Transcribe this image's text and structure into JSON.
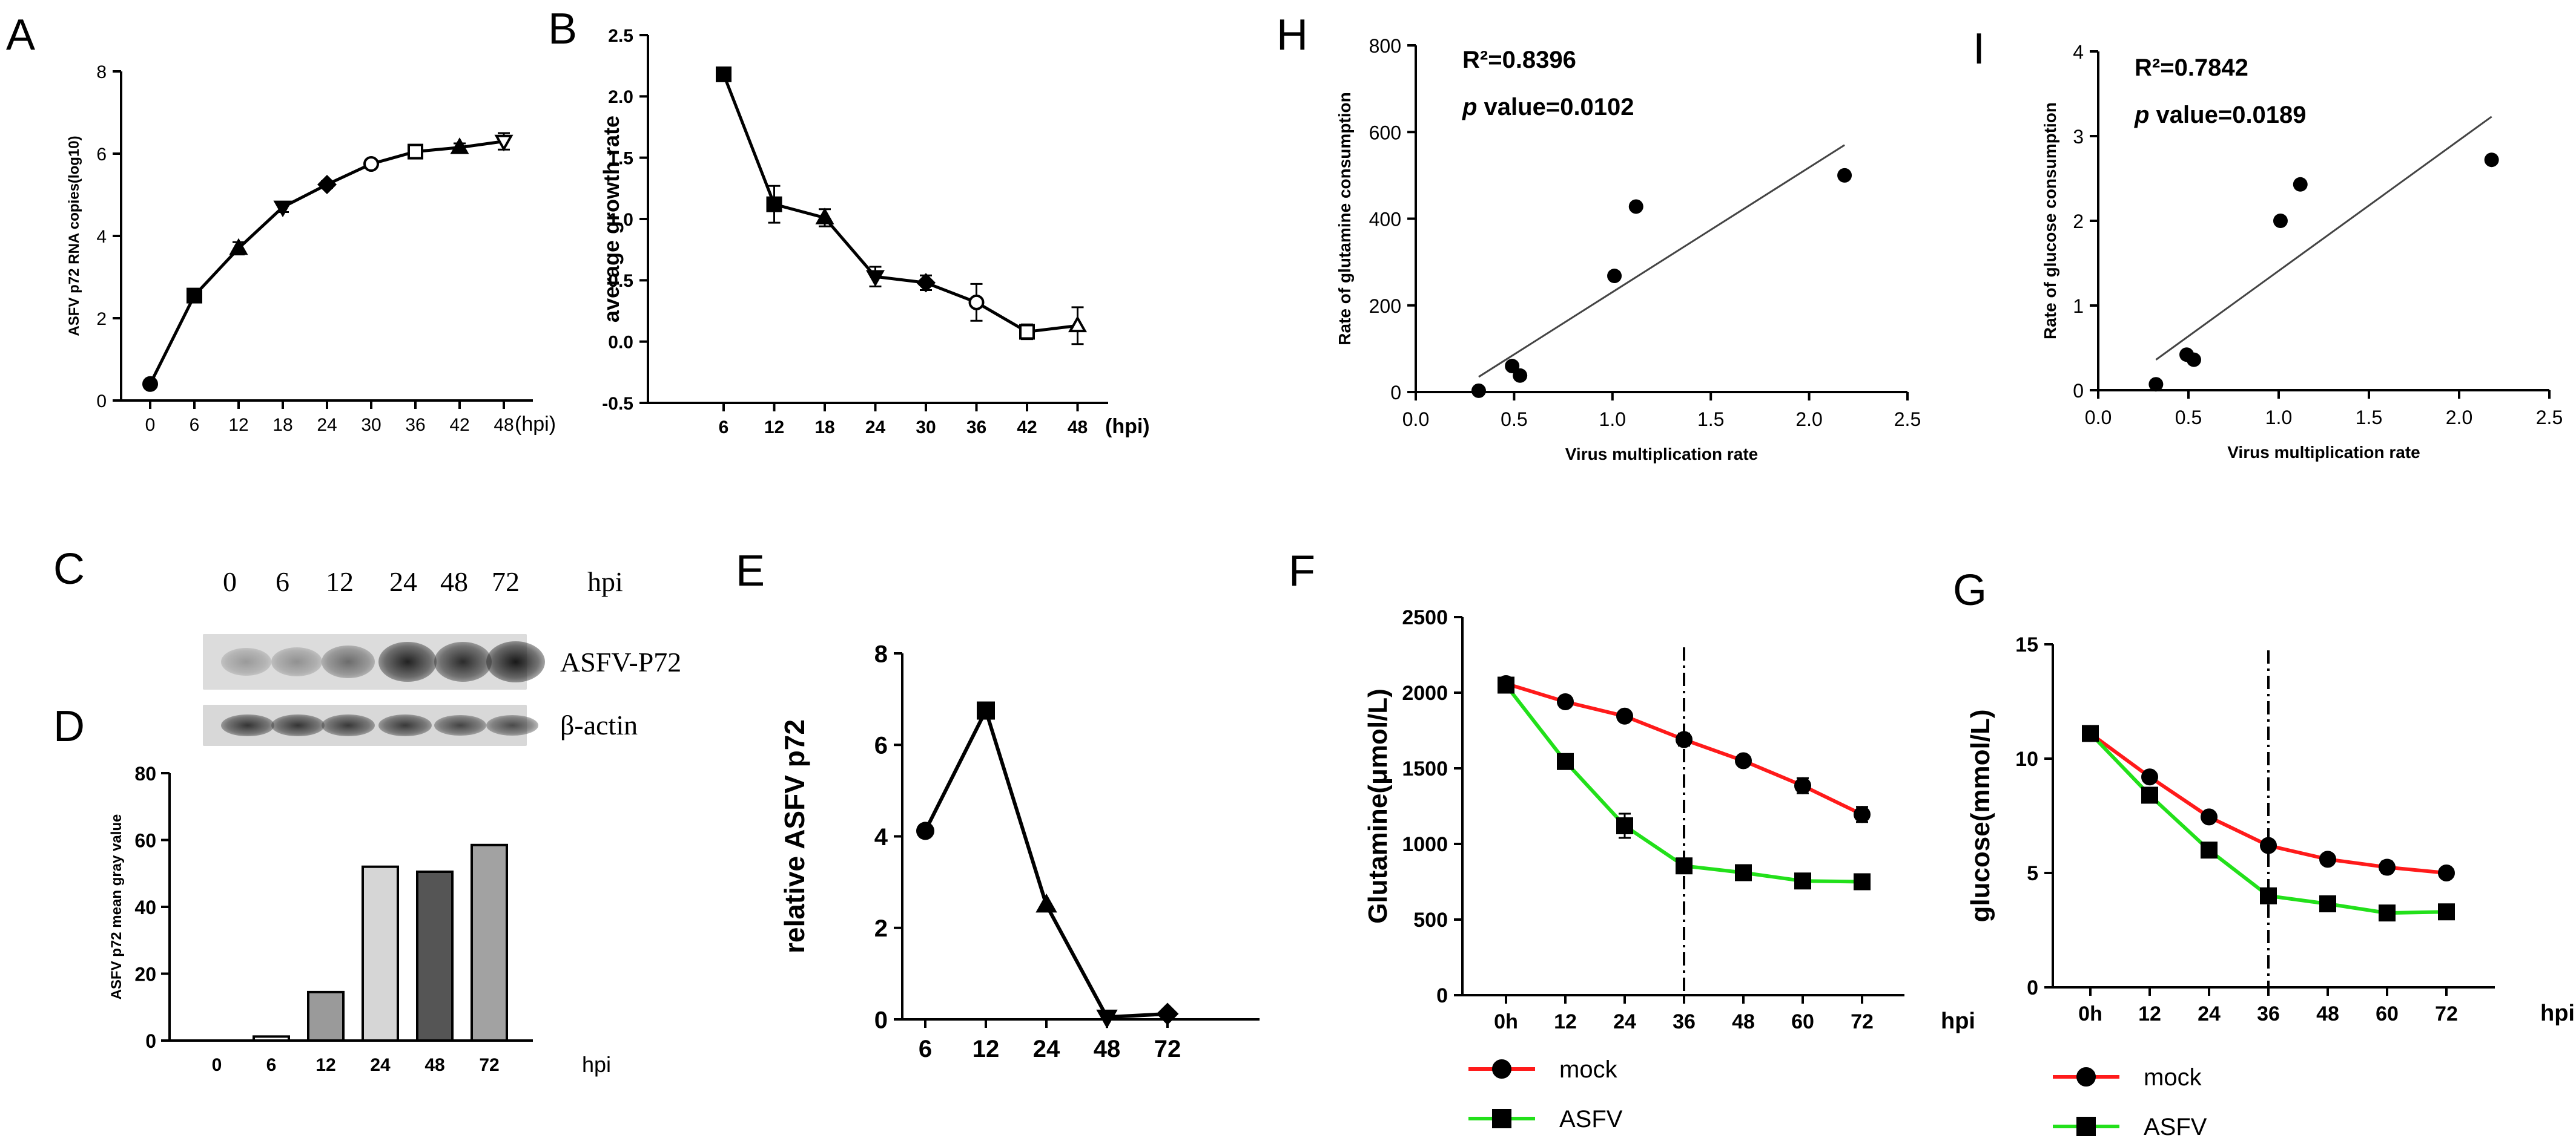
{
  "panel_letters": {
    "A": "A",
    "B": "B",
    "C": "C",
    "D": "D",
    "E": "E",
    "F": "F",
    "G": "G",
    "H": "H",
    "I": "I"
  },
  "blot": {
    "lanes": [
      "0",
      "6",
      "12",
      "24",
      "48",
      "72"
    ],
    "unit": "hpi",
    "row1_label": "ASFV-P72",
    "row2_label": "β-actin",
    "row1_intensity": [
      0.25,
      0.3,
      0.5,
      0.9,
      0.85,
      0.95
    ],
    "row2_intensity": [
      0.8,
      0.8,
      0.78,
      0.78,
      0.72,
      0.68
    ]
  },
  "chart_data": [
    {
      "id": "A",
      "type": "line",
      "title": "",
      "xlabel": "",
      "x_unit": "(hpi)",
      "ylabel": "ASFV p72 RNA copies(log10)",
      "categories": [
        "0",
        "6",
        "12",
        "18",
        "24",
        "30",
        "36",
        "42",
        "48"
      ],
      "values": [
        0.4,
        2.55,
        3.7,
        4.7,
        5.25,
        5.75,
        6.05,
        6.15,
        6.3
      ],
      "errors": [
        0.05,
        0.12,
        0.15,
        0.12,
        0.08,
        0.1,
        0.15,
        0.1,
        0.2
      ],
      "markers": [
        "circle",
        "square",
        "triangle",
        "triangle-down",
        "diamond",
        "circle-open",
        "square-open",
        "triangle",
        "triangle-down-open"
      ],
      "ylim": [
        0,
        8
      ],
      "yticks": [
        "0",
        "2",
        "4",
        "6",
        "8"
      ]
    },
    {
      "id": "B",
      "type": "line",
      "title": "",
      "xlabel": "",
      "x_unit": "(hpi)",
      "ylabel": "average growth rate",
      "categories": [
        "6",
        "12",
        "18",
        "24",
        "30",
        "36",
        "42",
        "48"
      ],
      "values": [
        2.18,
        1.12,
        1.01,
        0.53,
        0.48,
        0.32,
        0.08,
        0.13
      ],
      "errors": [
        0.05,
        0.15,
        0.07,
        0.08,
        0.06,
        0.15,
        0.06,
        0.15
      ],
      "markers": [
        "square",
        "square",
        "triangle",
        "triangle-down",
        "diamond",
        "circle-open",
        "square-open",
        "triangle-open"
      ],
      "ylim": [
        -0.5,
        2.5
      ],
      "yticks": [
        "-0.5",
        "0.0",
        "0.5",
        "1.0",
        "1.5",
        "2.0",
        "2.5"
      ]
    },
    {
      "id": "H",
      "type": "scatter",
      "annotation_r2": "R²=0.8396",
      "annotation_p_label": "p",
      "annotation_p": " value=0.0102",
      "xlabel": "Virus multiplication rate",
      "ylabel": "Rate of glutamine consumption",
      "points": [
        [
          0.32,
          3
        ],
        [
          0.49,
          60
        ],
        [
          0.53,
          38
        ],
        [
          1.01,
          268
        ],
        [
          1.12,
          428
        ],
        [
          2.18,
          500
        ]
      ],
      "fit_line": [
        [
          0.32,
          35
        ],
        [
          2.18,
          570
        ]
      ],
      "xlim": [
        0,
        2.5
      ],
      "ylim": [
        0,
        800
      ],
      "xticks": [
        "0.0",
        "0.5",
        "1.0",
        "1.5",
        "2.0",
        "2.5"
      ],
      "yticks": [
        "0",
        "200",
        "400",
        "600",
        "800"
      ]
    },
    {
      "id": "I",
      "type": "scatter",
      "annotation_r2": "R²=0.7842",
      "annotation_p_label": "p",
      "annotation_p": " value=0.0189",
      "xlabel": "Virus multiplication rate",
      "ylabel": "Rate of glucose consumption",
      "points": [
        [
          0.32,
          0.07
        ],
        [
          0.49,
          0.42
        ],
        [
          0.53,
          0.36
        ],
        [
          1.01,
          2.0
        ],
        [
          1.12,
          2.43
        ],
        [
          2.18,
          2.72
        ]
      ],
      "fit_line": [
        [
          0.32,
          0.36
        ],
        [
          2.18,
          3.23
        ]
      ],
      "xlim": [
        0,
        2.5
      ],
      "ylim": [
        0,
        4
      ],
      "xticks": [
        "0.0",
        "0.5",
        "1.0",
        "1.5",
        "2.0",
        "2.5"
      ],
      "yticks": [
        "0",
        "1",
        "2",
        "3",
        "4"
      ]
    },
    {
      "id": "D",
      "type": "bar",
      "xlabel": "",
      "x_unit": "hpi",
      "ylabel": "ASFV p72 mean gray value",
      "categories": [
        "0",
        "6",
        "12",
        "24",
        "48",
        "72"
      ],
      "values": [
        0,
        1.2,
        14.5,
        52,
        50.5,
        58.5
      ],
      "colors": [
        "#ffffff",
        "#ffffff",
        "#9a9a9a",
        "#d6d6d6",
        "#555555",
        "#a2a2a2"
      ],
      "ylim": [
        0,
        80
      ],
      "yticks": [
        "0",
        "20",
        "40",
        "60",
        "80"
      ]
    },
    {
      "id": "E",
      "type": "line",
      "xlabel": "",
      "ylabel": "relative ASFV p72",
      "categories": [
        "6",
        "12",
        "24",
        "48",
        "72"
      ],
      "values": [
        4.12,
        6.75,
        2.5,
        0.05,
        0.12
      ],
      "markers": [
        "circle",
        "square",
        "triangle",
        "triangle-down",
        "diamond"
      ],
      "ylim": [
        0,
        8
      ],
      "yticks": [
        "0",
        "2",
        "4",
        "6",
        "8"
      ]
    },
    {
      "id": "F",
      "type": "line",
      "xlabel": "",
      "x_unit": "hpi",
      "ylabel": "Glutamine(μmol/L)",
      "categories": [
        "0h",
        "12",
        "24",
        "36",
        "48",
        "60",
        "72"
      ],
      "series": [
        {
          "name": "mock",
          "color": "#ff1a1a",
          "marker": "circle",
          "values": [
            2060,
            1940,
            1845,
            1690,
            1550,
            1385,
            1195
          ],
          "errors": [
            30,
            35,
            30,
            40,
            30,
            50,
            50
          ]
        },
        {
          "name": "ASFV",
          "color": "#22e01a",
          "marker": "square",
          "values": [
            2050,
            1545,
            1120,
            855,
            810,
            755,
            750
          ],
          "errors": [
            30,
            30,
            80,
            40,
            40,
            35,
            35
          ]
        }
      ],
      "vline_at": "36",
      "ylim": [
        0,
        2500
      ],
      "yticks": [
        "0",
        "500",
        "1000",
        "1500",
        "2000",
        "2500"
      ]
    },
    {
      "id": "G",
      "type": "line",
      "xlabel": "",
      "x_unit": "hpi",
      "ylabel": "glucose(mmol/L)",
      "categories": [
        "0h",
        "12",
        "24",
        "36",
        "48",
        "60",
        "72"
      ],
      "series": [
        {
          "name": "mock",
          "color": "#ff1a1a",
          "marker": "circle",
          "values": [
            11.1,
            9.2,
            7.45,
            6.2,
            5.6,
            5.25,
            5.0
          ],
          "errors": [
            0.2,
            0.2,
            0.2,
            0.2,
            0.2,
            0.25,
            0.2
          ]
        },
        {
          "name": "ASFV",
          "color": "#22e01a",
          "marker": "square",
          "values": [
            11.1,
            8.4,
            6.0,
            4.0,
            3.65,
            3.25,
            3.3
          ],
          "errors": [
            0.2,
            0.2,
            0.2,
            0.2,
            0.2,
            0.2,
            0.2
          ]
        }
      ],
      "vline_at": "36",
      "ylim": [
        0,
        15
      ],
      "yticks": [
        "0",
        "5",
        "10",
        "15"
      ]
    }
  ]
}
